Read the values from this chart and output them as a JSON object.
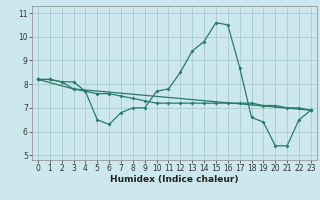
{
  "title": "",
  "xlabel": "Humidex (Indice chaleur)",
  "ylabel": "",
  "bg_color": "#cce8ee",
  "grid_color": "#aacccc",
  "line_color": "#2a7a6a",
  "xlim": [
    -0.5,
    23.5
  ],
  "ylim": [
    4.8,
    11.3
  ],
  "xticks": [
    0,
    1,
    2,
    3,
    4,
    5,
    6,
    7,
    8,
    9,
    10,
    11,
    12,
    13,
    14,
    15,
    16,
    17,
    18,
    19,
    20,
    21,
    22,
    23
  ],
  "yticks": [
    5,
    6,
    7,
    8,
    9,
    10,
    11
  ],
  "series1_x": [
    0,
    1,
    2,
    3,
    4,
    5,
    6,
    7,
    8,
    9,
    10,
    11,
    12,
    13,
    14,
    15,
    16,
    17,
    18,
    19,
    20,
    21,
    22,
    23
  ],
  "series1_y": [
    8.2,
    8.2,
    8.1,
    8.1,
    7.7,
    6.5,
    6.3,
    6.8,
    7.0,
    7.0,
    7.7,
    7.8,
    8.5,
    9.4,
    9.8,
    10.6,
    10.5,
    8.7,
    6.6,
    6.4,
    5.4,
    5.4,
    6.5,
    6.9
  ],
  "series2_x": [
    0,
    1,
    2,
    3,
    4,
    5,
    6,
    7,
    8,
    9,
    10,
    11,
    12,
    13,
    14,
    15,
    16,
    17,
    18,
    19,
    20,
    21,
    22,
    23
  ],
  "series2_y": [
    8.2,
    8.2,
    8.1,
    7.8,
    7.7,
    7.6,
    7.6,
    7.5,
    7.4,
    7.3,
    7.2,
    7.2,
    7.2,
    7.2,
    7.2,
    7.2,
    7.2,
    7.2,
    7.2,
    7.1,
    7.1,
    7.0,
    7.0,
    6.9
  ],
  "series3_x": [
    0,
    3,
    23
  ],
  "series3_y": [
    8.2,
    7.8,
    6.9
  ],
  "tick_fontsize": 5.5,
  "xlabel_fontsize": 6.5,
  "lw": 0.9,
  "ms": 2.0
}
